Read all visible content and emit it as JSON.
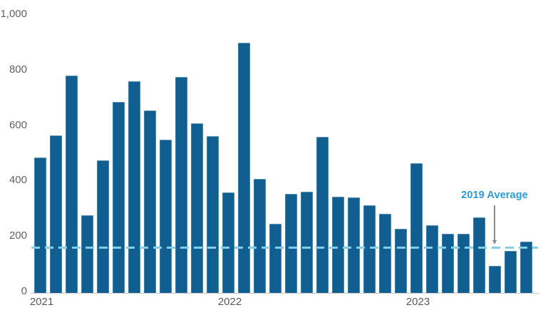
{
  "chart_data": {
    "type": "bar",
    "title": "",
    "xlabel": "",
    "ylabel": "",
    "x": [
      "2021-01",
      "2021-02",
      "2021-03",
      "2021-04",
      "2021-05",
      "2021-06",
      "2021-07",
      "2021-08",
      "2021-09",
      "2021-10",
      "2021-11",
      "2021-12",
      "2022-01",
      "2022-02",
      "2022-03",
      "2022-04",
      "2022-05",
      "2022-06",
      "2022-07",
      "2022-08",
      "2022-09",
      "2022-10",
      "2022-11",
      "2022-12",
      "2023-01",
      "2023-02",
      "2023-03",
      "2023-04",
      "2023-05",
      "2023-06",
      "2023-07",
      "2023-08"
    ],
    "values": [
      490,
      570,
      785,
      282,
      478,
      690,
      765,
      660,
      553,
      780,
      612,
      568,
      362,
      905,
      411,
      249,
      357,
      367,
      565,
      349,
      346,
      318,
      285,
      233,
      470,
      246,
      213,
      213,
      274,
      99,
      153,
      185
    ],
    "ylim": [
      0,
      1000
    ],
    "grid": false,
    "legend": false,
    "y_ticks": [
      {
        "value": 0,
        "label": "0"
      },
      {
        "value": 200,
        "label": "200"
      },
      {
        "value": 400,
        "label": "400"
      },
      {
        "value": 600,
        "label": "600"
      },
      {
        "value": 800,
        "label": "800"
      },
      {
        "value": 1000,
        "label": "1,000"
      }
    ],
    "x_ticks": [
      {
        "bar_index": 0,
        "label": "2021"
      },
      {
        "bar_index": 12,
        "label": "2022"
      },
      {
        "bar_index": 24,
        "label": "2023"
      }
    ],
    "reference_line": {
      "label": "2019 Average",
      "value": 158
    }
  },
  "colors": {
    "bar": "#115e91",
    "reference_line": "#84cfe8",
    "annotation_text": "#2b9cd8",
    "arrow": "#8a8a8a",
    "axis_line": "#c9c9c9",
    "y_tick_label": "#636363",
    "x_tick_label": "#58595b",
    "background": "#ffffff"
  }
}
